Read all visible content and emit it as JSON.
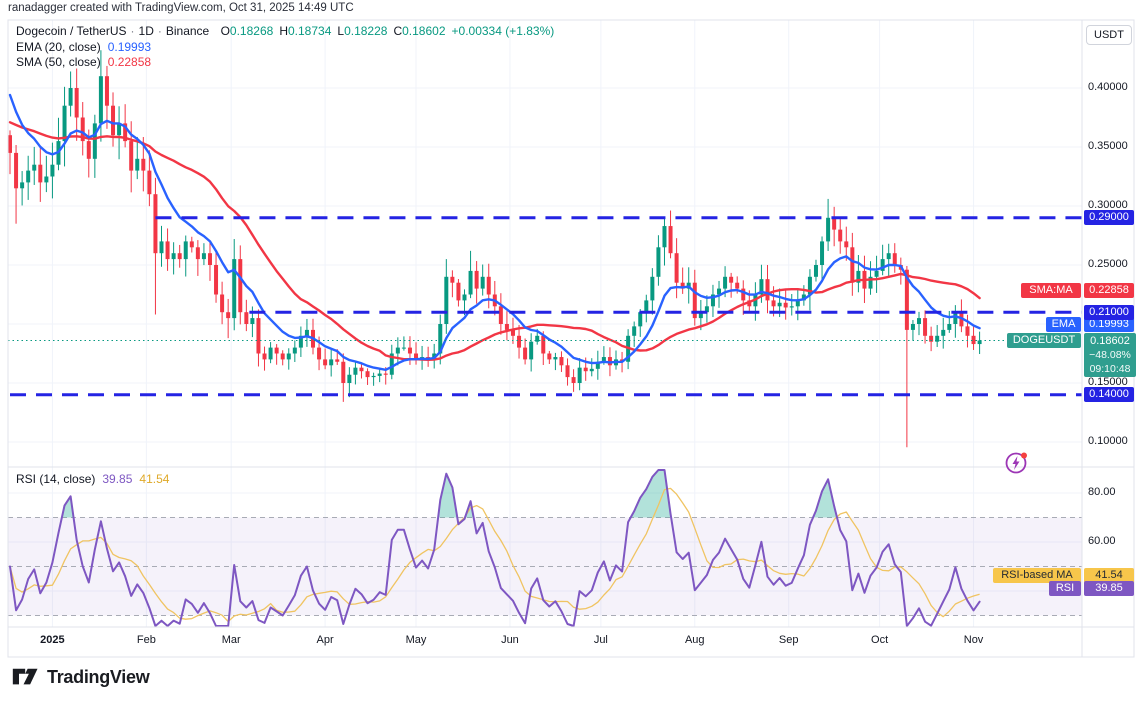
{
  "attribution": "ranadagger created with TradingView.com, Oct 31, 2025 14:49 UTC",
  "header": {
    "symbol": "Dogecoin / TetherUS",
    "separator": "·",
    "interval": "1D",
    "exchange": "Binance",
    "ohlc": [
      {
        "k": "O",
        "v": "0.18268"
      },
      {
        "k": "H",
        "v": "0.18734"
      },
      {
        "k": "L",
        "v": "0.18228"
      },
      {
        "k": "C",
        "v": "0.18602"
      }
    ],
    "change": "+0.00334 (+1.83%)",
    "ema_row": {
      "label": "EMA (20, close)",
      "value": "0.19993"
    },
    "sma_row": {
      "label": "SMA (50, close)",
      "value": "0.22858"
    }
  },
  "price_scale": {
    "currency_button": "USDT",
    "ticks": [
      {
        "label": "0.40000",
        "value": 0.4
      },
      {
        "label": "0.35000",
        "value": 0.35
      },
      {
        "label": "0.30000",
        "value": 0.3
      },
      {
        "label": "0.25000",
        "value": 0.25
      },
      {
        "label": "0.15000",
        "value": 0.15
      },
      {
        "label": "0.10000",
        "value": 0.1
      }
    ]
  },
  "badges": {
    "sma": {
      "pill": "SMA:MA",
      "value": "0.22858"
    },
    "ema": {
      "pill": "EMA",
      "value": "0.19993"
    },
    "price": {
      "pill": "DOGEUSDT",
      "value": "0.18602",
      "change_pct": "−48.08%",
      "countdown": "09:10:48"
    },
    "rsi_ma": {
      "pill": "RSI-based MA",
      "value": "41.54"
    },
    "rsi": {
      "pill": "RSI",
      "value": "39.85"
    }
  },
  "rsi_panel": {
    "legend": "RSI (14, close)",
    "value": "39.85",
    "ma_value": "41.54",
    "ticks": [
      {
        "label": "80.00",
        "value": 80
      },
      {
        "label": "60.00",
        "value": 60
      }
    ],
    "guides": [
      70,
      50,
      30
    ],
    "band": [
      30,
      70
    ]
  },
  "time_axis": {
    "months": [
      {
        "label": "2025",
        "day": 14,
        "bold": true
      },
      {
        "label": "Feb",
        "day": 45
      },
      {
        "label": "Mar",
        "day": 73
      },
      {
        "label": "Apr",
        "day": 104
      },
      {
        "label": "May",
        "day": 134
      },
      {
        "label": "Jun",
        "day": 165
      },
      {
        "label": "Jul",
        "day": 195
      },
      {
        "label": "Aug",
        "day": 226
      },
      {
        "label": "Sep",
        "day": 257
      },
      {
        "label": "Oct",
        "day": 287
      },
      {
        "label": "Nov",
        "day": 318
      }
    ]
  },
  "footer": {
    "brand": "TradingView"
  },
  "icons": {
    "flash_icon": "lightning-bolt",
    "tradingview_logo": "tradingview-mark"
  },
  "colors": {
    "up": "#089981",
    "down": "#f23645",
    "ema": "#2962ff",
    "sma": "#f23645",
    "level_blue": "#2423e3",
    "rsi": "#7e57c2",
    "rsi_ma": "#f0c462",
    "teal_badge": "#2f9e8f",
    "grid": "#f0f3fa",
    "frame": "#e0e3eb"
  },
  "chart_data": {
    "type": "candlestick",
    "title": "Dogecoin / TetherUS 1D Binance with EMA(20), SMA(50), RSI(14) panel",
    "x_range": "2-day bars, Dec 2024 through Oct 31 2025",
    "ylim": [
      0.09,
      0.46
    ],
    "first_open": 0.36,
    "closes": [
      0.345,
      0.315,
      0.32,
      0.33,
      0.335,
      0.32,
      0.325,
      0.335,
      0.355,
      0.385,
      0.4,
      0.375,
      0.355,
      0.34,
      0.37,
      0.41,
      0.385,
      0.36,
      0.37,
      0.355,
      0.33,
      0.34,
      0.33,
      0.31,
      0.26,
      0.27,
      0.255,
      0.26,
      0.255,
      0.27,
      0.265,
      0.255,
      0.26,
      0.25,
      0.225,
      0.21,
      0.205,
      0.255,
      0.21,
      0.2,
      0.205,
      0.175,
      0.17,
      0.18,
      0.175,
      0.17,
      0.175,
      0.18,
      0.19,
      0.195,
      0.18,
      0.17,
      0.165,
      0.17,
      0.168,
      0.15,
      0.157,
      0.163,
      0.16,
      0.155,
      0.156,
      0.158,
      0.157,
      0.175,
      0.18,
      0.18,
      0.175,
      0.17,
      0.172,
      0.17,
      0.175,
      0.2,
      0.24,
      0.235,
      0.22,
      0.225,
      0.245,
      0.23,
      0.24,
      0.225,
      0.215,
      0.2,
      0.195,
      0.19,
      0.18,
      0.17,
      0.185,
      0.19,
      0.175,
      0.17,
      0.172,
      0.165,
      0.155,
      0.15,
      0.163,
      0.16,
      0.162,
      0.168,
      0.172,
      0.165,
      0.17,
      0.168,
      0.19,
      0.198,
      0.21,
      0.22,
      0.24,
      0.265,
      0.283,
      0.26,
      0.235,
      0.23,
      0.235,
      0.205,
      0.21,
      0.215,
      0.225,
      0.23,
      0.24,
      0.235,
      0.23,
      0.22,
      0.215,
      0.225,
      0.238,
      0.22,
      0.215,
      0.218,
      0.214,
      0.215,
      0.22,
      0.225,
      0.24,
      0.25,
      0.27,
      0.29,
      0.28,
      0.27,
      0.265,
      0.235,
      0.245,
      0.23,
      0.24,
      0.245,
      0.255,
      0.26,
      0.25,
      0.246,
      0.195,
      0.2,
      0.205,
      0.19,
      0.185,
      0.19,
      0.195,
      0.2,
      0.21,
      0.198,
      0.19,
      0.183,
      0.18602
    ],
    "wick_high_overrides": {
      "9": 0.401,
      "10": 0.414,
      "15": 0.432,
      "37": 0.272,
      "72": 0.255,
      "76": 0.262,
      "108": 0.291,
      "118": 0.249,
      "135": 0.306,
      "145": 0.268,
      "156": 0.216
    },
    "wick_low_overrides": {
      "1": 0.285,
      "24": 0.208,
      "36": 0.188,
      "41": 0.164,
      "55": 0.134,
      "56": 0.138,
      "93": 0.1425,
      "148": 0.0955,
      "152": 0.177,
      "159": 0.178
    },
    "levels": [
      {
        "label": "0.29000",
        "value": 0.29,
        "start_day": 48
      },
      {
        "label": "0.21000",
        "value": 0.21,
        "start_day": 79
      },
      {
        "label": "0.14000",
        "value": 0.14,
        "start_day": 0
      }
    ],
    "last_price": 0.18602,
    "overlays": [
      {
        "name": "EMA 20",
        "color": "#2962ff",
        "last": 0.19993
      },
      {
        "name": "SMA 50",
        "color": "#f23645",
        "last": 0.22858
      }
    ],
    "rsi_panel": {
      "name": "RSI 14",
      "last": 39.85,
      "ma_last": 41.54,
      "overbought": 70,
      "oversold": 30
    }
  }
}
